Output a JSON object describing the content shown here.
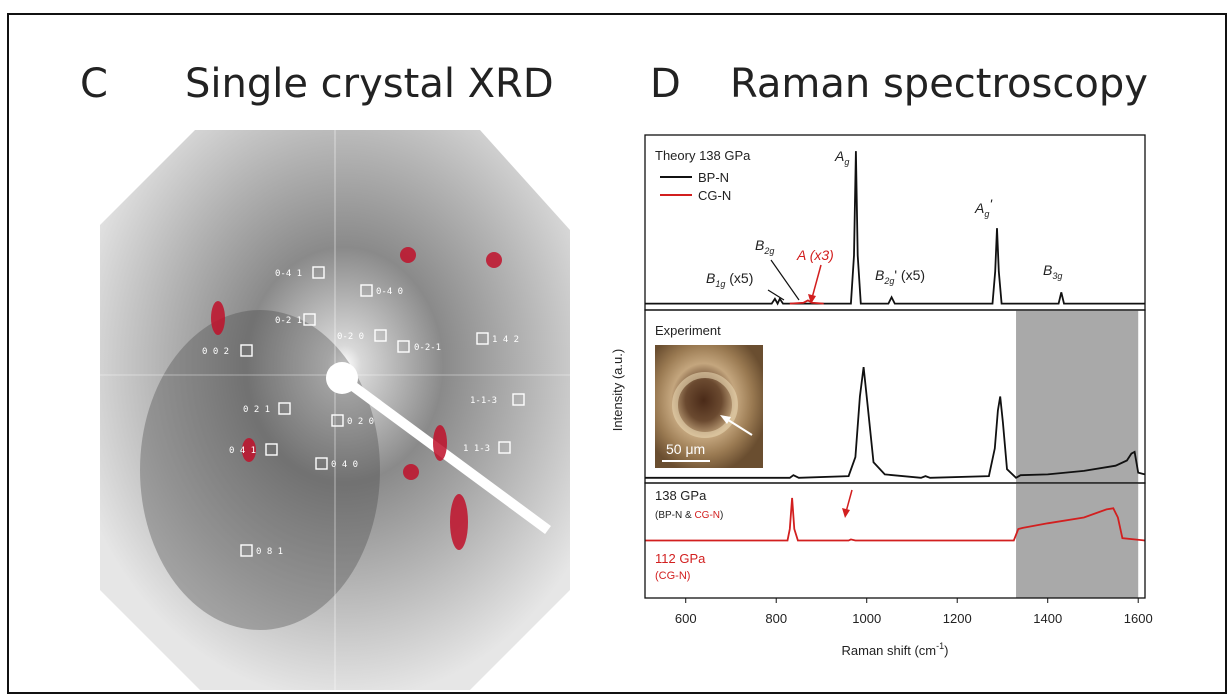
{
  "panels": {
    "c_letter": "C",
    "c_title": "Single crystal XRD",
    "d_letter": "D",
    "d_title": "Raman spectroscopy"
  },
  "xrd_labels": [
    "0-4 1",
    "0-4 0",
    "0-2 1",
    "0-2 0",
    "1 4 2",
    "0 0 2",
    "0-2-1",
    "0 2 1",
    "0 2 0",
    "1-1-3",
    "0 4 1",
    "0 4 0",
    "1 1-3",
    "0 8 1"
  ],
  "raman": {
    "ylabel": "Intensity (a.u.)",
    "xlabel": {
      "text": "Raman shift (cm",
      "sup": "-1",
      "tail": ")"
    },
    "inset_scale": "50 μm",
    "annotations": [
      {
        "text": "A",
        "sub": "g"
      },
      {
        "text": "B",
        "sub": "2g"
      },
      {
        "text": "B",
        "sub": "1g",
        "tail": " (x5)"
      },
      {
        "text": "A (x3)"
      },
      {
        "text": "B",
        "sub": "2g",
        "tail": "' (x5)"
      },
      {
        "text": "A",
        "sub": "g",
        "tail": "'"
      },
      {
        "text": "B",
        "sub": "3g"
      }
    ]
  },
  "chart_data": [
    {
      "type": "line",
      "title": "Theory 138 GPa",
      "xlim": [
        510,
        1615
      ],
      "ylim": [
        -0.04,
        1.05
      ],
      "series": [
        {
          "name": "BP-N",
          "color": "#111111",
          "x": [
            510,
            790,
            797,
            803,
            808,
            815,
            965,
            972,
            976,
            980,
            987,
            1048,
            1055,
            1062,
            1278,
            1284,
            1288,
            1292,
            1298,
            1424,
            1430,
            1436,
            1615
          ],
          "values": [
            0,
            0,
            0.03,
            0,
            0.03,
            0,
            0,
            0.3,
            0.95,
            0.3,
            0,
            0,
            0.04,
            0,
            0,
            0.2,
            0.47,
            0.2,
            0,
            0,
            0.07,
            0,
            0
          ]
        },
        {
          "name": "CG-N",
          "color": "#d21f1f",
          "x": [
            830,
            860,
            870,
            880,
            905
          ],
          "values": [
            0,
            0.005,
            0.02,
            0.005,
            0
          ]
        }
      ]
    },
    {
      "type": "line",
      "title": "Experiment",
      "xlim": [
        510,
        1615
      ],
      "ylim": [
        0,
        1
      ],
      "shade": [
        1330,
        1600
      ],
      "series": [
        {
          "color": "#111111",
          "x": [
            510,
            800,
            830,
            838,
            850,
            960,
            975,
            985,
            993,
            1002,
            1015,
            1040,
            1120,
            1130,
            1140,
            1270,
            1283,
            1290,
            1295,
            1301,
            1310,
            1330,
            1340,
            1400,
            1480,
            1550,
            1575,
            1585,
            1592,
            1600,
            1615
          ],
          "values": [
            0.03,
            0.03,
            0.03,
            0.045,
            0.03,
            0.04,
            0.15,
            0.5,
            0.67,
            0.45,
            0.12,
            0.05,
            0.03,
            0.04,
            0.03,
            0.04,
            0.2,
            0.42,
            0.5,
            0.35,
            0.08,
            0.03,
            0.045,
            0.05,
            0.07,
            0.1,
            0.13,
            0.17,
            0.18,
            0.06,
            0.05
          ]
        }
      ]
    },
    {
      "type": "line",
      "xlim": [
        510,
        1615
      ],
      "ylim": [
        0,
        1
      ],
      "shade": [
        1330,
        1600
      ],
      "xticks": [
        600,
        800,
        1000,
        1200,
        1400,
        1600
      ],
      "labels": {
        "main": "138 GPa",
        "sub_parts": [
          "(BP-N & ",
          "CG-N",
          ")"
        ],
        "red_main": "112 GPa",
        "red_sub": "(CG-N)"
      },
      "series": [
        {
          "color": "#d21f1f",
          "x": [
            510,
            825,
            830,
            835,
            840,
            848,
            960,
            965,
            975,
            1325,
            1335,
            1345,
            1400,
            1480,
            1530,
            1545,
            1555,
            1565,
            1615
          ],
          "values": [
            0.5,
            0.5,
            0.6,
            0.87,
            0.6,
            0.5,
            0.5,
            0.51,
            0.5,
            0.5,
            0.6,
            0.61,
            0.65,
            0.7,
            0.77,
            0.78,
            0.7,
            0.52,
            0.5
          ]
        }
      ]
    }
  ]
}
